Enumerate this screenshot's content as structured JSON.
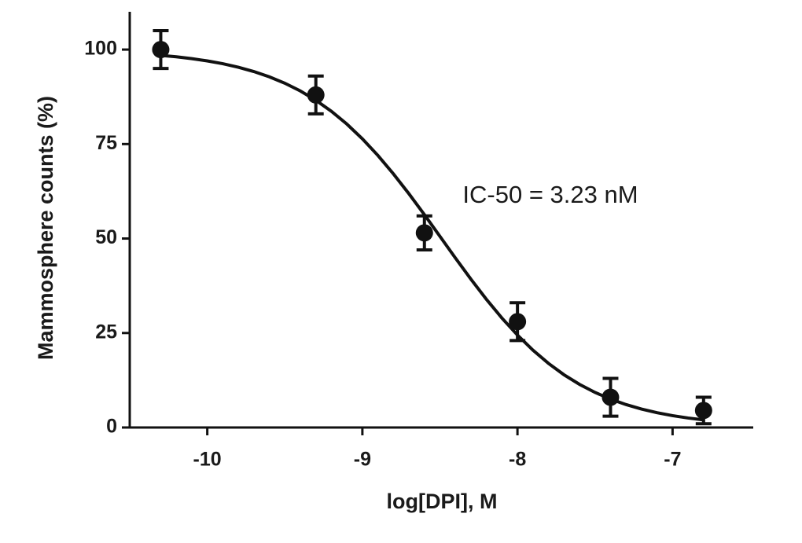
{
  "chart_data": {
    "type": "scatter",
    "x_label": "log[DPI], M",
    "y_label": "Mammosphere counts (%)",
    "annotation": "IC-50 = 3.23 nM",
    "xlim": [
      -10.5,
      -6.5
    ],
    "ylim": [
      0,
      110
    ],
    "xticks": [
      -10,
      -9,
      -8,
      -7
    ],
    "yticks": [
      0,
      25,
      50,
      75,
      100
    ],
    "color": "#111111",
    "series": [
      {
        "color": "#111111",
        "x": [
          -10.3,
          -9.3,
          -8.6,
          -8.0,
          -7.4,
          -6.8
        ],
        "values": [
          100,
          88,
          51.5,
          28,
          8,
          4.5
        ],
        "errors": [
          5,
          5,
          4.5,
          5,
          5,
          3.5
        ]
      }
    ],
    "fit": {
      "color": "#111111",
      "x": [
        -10.3,
        -10.2,
        -10.1,
        -10.0,
        -9.9,
        -9.8,
        -9.7,
        -9.6,
        -9.5,
        -9.4,
        -9.3,
        -9.2,
        -9.1,
        -9.0,
        -8.9,
        -8.8,
        -8.7,
        -8.6,
        -8.5,
        -8.4,
        -8.3,
        -8.2,
        -8.1,
        -8.0,
        -7.9,
        -7.8,
        -7.7,
        -7.6,
        -7.5,
        -7.4,
        -7.3,
        -7.2,
        -7.1,
        -7.0,
        -6.9,
        -6.8
      ],
      "values": [
        98.47,
        98.09,
        97.6,
        97.0,
        96.26,
        95.33,
        94.19,
        92.8,
        91.1,
        89.05,
        86.59,
        83.68,
        80.29,
        76.39,
        71.99,
        67.11,
        61.86,
        56.3,
        50.58,
        44.84,
        39.23,
        33.9,
        28.94,
        24.45,
        20.45,
        16.96,
        13.95,
        11.41,
        9.28,
        7.52,
        6.06,
        4.88,
        3.91,
        3.13,
        2.51,
        2.0
      ]
    }
  }
}
